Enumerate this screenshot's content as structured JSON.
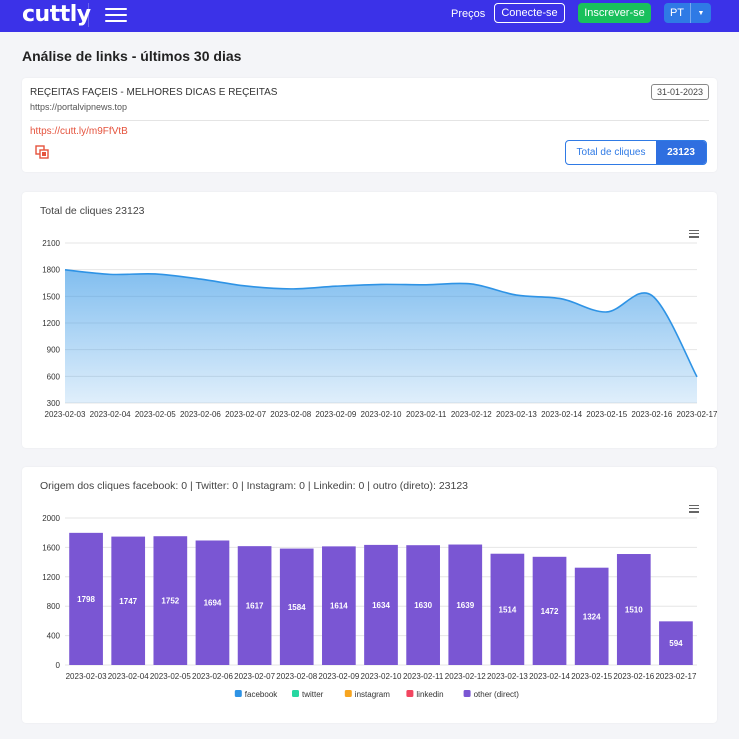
{
  "nav": {
    "logo": "cuttly",
    "pricing": "Preços",
    "login": "Conecte-se",
    "signup": "Inscrever-se",
    "lang": "PT"
  },
  "page": {
    "title": "Análise de links - últimos 30 dias"
  },
  "link": {
    "title": "REÇEITAS FAÇEIS - MELHORES DICAS E REÇEITAS",
    "domain": "https://portalvipnews.top",
    "date": "31-01-2023",
    "short_url": "https://cutt.ly/m9FfVtB",
    "total_label": "Total de cliques",
    "total_value": "23123"
  },
  "colors": {
    "accent": "#3b32e8",
    "area": "#2e93e5",
    "bar": "#7a56d3",
    "link": "#e5533d"
  },
  "chart_data": [
    {
      "type": "area",
      "title": "Total de cliques 23123",
      "x": [
        "2023-02-03",
        "2023-02-04",
        "2023-02-05",
        "2023-02-06",
        "2023-02-07",
        "2023-02-08",
        "2023-02-09",
        "2023-02-10",
        "2023-02-11",
        "2023-02-12",
        "2023-02-13",
        "2023-02-14",
        "2023-02-15",
        "2023-02-16",
        "2023-02-17"
      ],
      "values": [
        1798,
        1747,
        1752,
        1694,
        1617,
        1584,
        1614,
        1634,
        1630,
        1639,
        1514,
        1472,
        1324,
        1510,
        594
      ],
      "yticks": [
        300,
        600,
        900,
        1200,
        1500,
        1800,
        2100
      ],
      "ylim": [
        300,
        2100
      ],
      "grid": true
    },
    {
      "type": "bar",
      "title": "Origem dos cliques facebook: 0 | Twitter: 0 | Instagram: 0 | Linkedin: 0 | outro (direto): 23123",
      "categories": [
        "2023-02-03",
        "2023-02-04",
        "2023-02-05",
        "2023-02-06",
        "2023-02-07",
        "2023-02-08",
        "2023-02-09",
        "2023-02-10",
        "2023-02-11",
        "2023-02-12",
        "2023-02-13",
        "2023-02-14",
        "2023-02-15",
        "2023-02-16",
        "2023-02-17"
      ],
      "series": [
        {
          "name": "facebook",
          "color": "#2e93e5",
          "values": [
            0,
            0,
            0,
            0,
            0,
            0,
            0,
            0,
            0,
            0,
            0,
            0,
            0,
            0,
            0
          ]
        },
        {
          "name": "twitter",
          "color": "#26d7a1",
          "values": [
            0,
            0,
            0,
            0,
            0,
            0,
            0,
            0,
            0,
            0,
            0,
            0,
            0,
            0,
            0
          ]
        },
        {
          "name": "instagram",
          "color": "#f7a520",
          "values": [
            0,
            0,
            0,
            0,
            0,
            0,
            0,
            0,
            0,
            0,
            0,
            0,
            0,
            0,
            0
          ]
        },
        {
          "name": "linkedin",
          "color": "#f24560",
          "values": [
            0,
            0,
            0,
            0,
            0,
            0,
            0,
            0,
            0,
            0,
            0,
            0,
            0,
            0,
            0
          ]
        },
        {
          "name": "other (direct)",
          "color": "#7a56d3",
          "values": [
            1798,
            1747,
            1752,
            1694,
            1617,
            1584,
            1614,
            1634,
            1630,
            1639,
            1514,
            1472,
            1324,
            1510,
            594
          ]
        }
      ],
      "yticks": [
        0,
        400,
        800,
        1200,
        1600,
        2000
      ],
      "ylim": [
        0,
        2000
      ],
      "legend": "bottom",
      "grid": true
    }
  ]
}
